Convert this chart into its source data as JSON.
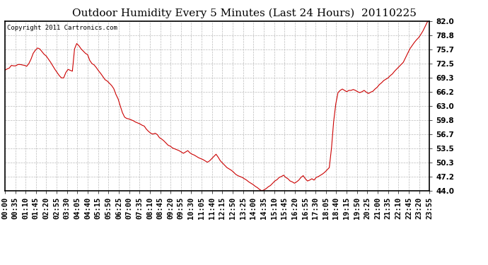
{
  "title": "Outdoor Humidity Every 5 Minutes (Last 24 Hours)  20110225",
  "copyright_text": "Copyright 2011 Cartronics.com",
  "line_color": "#cc0000",
  "bg_color": "#ffffff",
  "plot_bg_color": "#ffffff",
  "grid_color": "#bbbbbb",
  "ylim": [
    44.0,
    82.0
  ],
  "yticks": [
    44.0,
    47.2,
    50.3,
    53.5,
    56.7,
    59.8,
    63.0,
    66.2,
    69.3,
    72.5,
    75.7,
    78.8,
    82.0
  ],
  "title_fontsize": 11,
  "copyright_fontsize": 6.5,
  "tick_label_fontsize": 7.5,
  "x_tick_labels": [
    "00:00",
    "00:35",
    "01:10",
    "01:45",
    "02:20",
    "02:55",
    "03:30",
    "04:05",
    "04:40",
    "05:15",
    "05:50",
    "06:25",
    "07:00",
    "07:35",
    "08:10",
    "08:45",
    "09:20",
    "09:55",
    "10:30",
    "11:05",
    "11:40",
    "12:15",
    "12:50",
    "13:25",
    "14:00",
    "14:35",
    "15:10",
    "15:45",
    "16:20",
    "16:55",
    "17:30",
    "18:05",
    "18:40",
    "19:15",
    "19:50",
    "20:25",
    "21:00",
    "21:35",
    "22:10",
    "22:45",
    "23:20",
    "23:55"
  ],
  "humidity_values": [
    71.0,
    71.3,
    71.5,
    72.1,
    72.0,
    72.0,
    72.3,
    72.3,
    72.2,
    72.1,
    71.9,
    72.5,
    73.5,
    74.8,
    75.5,
    76.0,
    75.8,
    75.2,
    74.6,
    74.2,
    73.5,
    72.8,
    72.0,
    71.2,
    70.5,
    69.8,
    69.3,
    69.3,
    70.5,
    71.2,
    71.0,
    70.8,
    75.8,
    77.0,
    76.5,
    75.8,
    75.3,
    74.8,
    74.5,
    73.2,
    72.5,
    72.2,
    71.6,
    70.9,
    70.3,
    69.6,
    68.9,
    68.6,
    68.1,
    67.6,
    66.9,
    65.6,
    64.6,
    63.0,
    61.5,
    60.5,
    60.2,
    60.1,
    59.9,
    59.7,
    59.4,
    59.2,
    59.0,
    58.7,
    58.5,
    57.8,
    57.3,
    56.9,
    56.7,
    56.9,
    56.6,
    55.9,
    55.6,
    55.2,
    54.7,
    54.2,
    54.0,
    53.6,
    53.4,
    53.2,
    53.0,
    52.7,
    52.4,
    52.7,
    53.0,
    52.5,
    52.2,
    52.0,
    51.7,
    51.4,
    51.2,
    51.0,
    50.7,
    50.4,
    50.7,
    51.2,
    51.7,
    52.2,
    51.5,
    50.7,
    50.2,
    49.7,
    49.2,
    48.9,
    48.6,
    48.2,
    47.7,
    47.4,
    47.2,
    47.0,
    46.7,
    46.4,
    46.0,
    45.7,
    45.4,
    45.0,
    44.7,
    44.3,
    44.0,
    44.2,
    44.5,
    44.9,
    45.2,
    45.7,
    46.2,
    46.5,
    47.0,
    47.2,
    47.5,
    47.0,
    46.7,
    46.2,
    46.0,
    45.7,
    46.0,
    46.4,
    47.0,
    47.4,
    46.7,
    46.2,
    46.4,
    46.7,
    46.4,
    47.0,
    47.2,
    47.5,
    47.8,
    48.2,
    48.7,
    49.2,
    53.5,
    59.5,
    63.5,
    66.0,
    66.5,
    66.8,
    66.5,
    66.2,
    66.5,
    66.5,
    66.7,
    66.5,
    66.2,
    66.0,
    66.2,
    66.5,
    66.1,
    65.8,
    66.1,
    66.3,
    66.8,
    67.2,
    67.8,
    68.2,
    68.7,
    69.0,
    69.3,
    69.8,
    70.2,
    70.8,
    71.3,
    71.8,
    72.3,
    72.8,
    73.8,
    74.8,
    75.8,
    76.5,
    77.2,
    77.8,
    78.3,
    79.0,
    79.8,
    80.8,
    81.8,
    82.2
  ]
}
